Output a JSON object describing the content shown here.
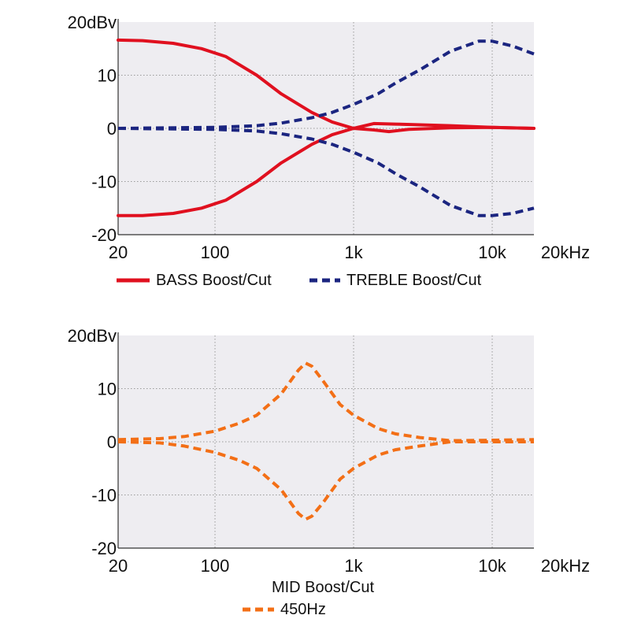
{
  "colors": {
    "plot_background": "#eeedf1",
    "grid": "#9a9a9a",
    "bass": "#e0101f",
    "treble": "#1b2580",
    "mid": "#f36f16"
  },
  "chart_data": [
    {
      "type": "line",
      "title": "",
      "x_scale": "log",
      "xlim": [
        20,
        20000
      ],
      "ylim": [
        -20,
        20
      ],
      "x_ticks": [
        {
          "value": 20,
          "label": "20"
        },
        {
          "value": 100,
          "label": "100"
        },
        {
          "value": 1000,
          "label": "1k"
        },
        {
          "value": 10000,
          "label": "10k"
        },
        {
          "value": 20000,
          "label": "20kHz"
        }
      ],
      "y_ticks": [
        {
          "value": 20,
          "label": "20dBv"
        },
        {
          "value": 10,
          "label": "10"
        },
        {
          "value": 0,
          "label": "0"
        },
        {
          "value": -10,
          "label": "-10"
        },
        {
          "value": -20,
          "label": "-20"
        }
      ],
      "grid": true,
      "legend": [
        {
          "label": "BASS Boost/Cut",
          "style": "solid",
          "color": "#e0101f"
        },
        {
          "label": "TREBLE Boost/Cut",
          "style": "dashed",
          "color": "#1b2580"
        }
      ],
      "series": [
        {
          "group": "BASS",
          "style": "solid",
          "color": "#e0101f",
          "points": [
            [
              20,
              16.6
            ],
            [
              30,
              16.5
            ],
            [
              50,
              16
            ],
            [
              80,
              15
            ],
            [
              120,
              13.5
            ],
            [
              200,
              10
            ],
            [
              300,
              6.5
            ],
            [
              500,
              3
            ],
            [
              700,
              1.2
            ],
            [
              1000,
              0
            ],
            [
              1400,
              0.9
            ],
            [
              2000,
              0.8
            ],
            [
              5000,
              0.5
            ],
            [
              10000,
              0.2
            ],
            [
              20000,
              0
            ]
          ]
        },
        {
          "group": "BASS",
          "style": "solid",
          "color": "#e0101f",
          "points": [
            [
              20,
              -16.4
            ],
            [
              30,
              -16.4
            ],
            [
              50,
              -16
            ],
            [
              80,
              -15
            ],
            [
              120,
              -13.5
            ],
            [
              200,
              -10
            ],
            [
              300,
              -6.5
            ],
            [
              500,
              -3
            ],
            [
              700,
              -1.2
            ],
            [
              1000,
              0
            ],
            [
              1400,
              -0.3
            ],
            [
              1800,
              -0.6
            ],
            [
              2500,
              -0.2
            ],
            [
              5000,
              0.1
            ],
            [
              10000,
              0.2
            ],
            [
              20000,
              0
            ]
          ]
        },
        {
          "group": "TREBLE",
          "style": "dashed",
          "color": "#1b2580",
          "points": [
            [
              20,
              0
            ],
            [
              100,
              0.2
            ],
            [
              200,
              0.5
            ],
            [
              300,
              1
            ],
            [
              500,
              2
            ],
            [
              700,
              3
            ],
            [
              1000,
              4.5
            ],
            [
              1500,
              6.5
            ],
            [
              2000,
              8.5
            ],
            [
              3000,
              11
            ],
            [
              5000,
              14.5
            ],
            [
              8000,
              16.4
            ],
            [
              10000,
              16.4
            ],
            [
              14000,
              15.5
            ],
            [
              20000,
              14
            ]
          ]
        },
        {
          "group": "TREBLE",
          "style": "dashed",
          "color": "#1b2580",
          "points": [
            [
              20,
              0
            ],
            [
              100,
              -0.2
            ],
            [
              200,
              -0.5
            ],
            [
              300,
              -1
            ],
            [
              500,
              -2
            ],
            [
              700,
              -3
            ],
            [
              1000,
              -4.5
            ],
            [
              1500,
              -6.5
            ],
            [
              2000,
              -8.5
            ],
            [
              3000,
              -11
            ],
            [
              5000,
              -14.5
            ],
            [
              8000,
              -16.4
            ],
            [
              10000,
              -16.4
            ],
            [
              14000,
              -16
            ],
            [
              20000,
              -15
            ]
          ]
        }
      ]
    },
    {
      "type": "line",
      "title": "MID Boost/Cut",
      "x_scale": "log",
      "xlim": [
        20,
        20000
      ],
      "ylim": [
        -20,
        20
      ],
      "x_ticks": [
        {
          "value": 20,
          "label": "20"
        },
        {
          "value": 100,
          "label": "100"
        },
        {
          "value": 1000,
          "label": "1k"
        },
        {
          "value": 10000,
          "label": "10k"
        },
        {
          "value": 20000,
          "label": "20kHz"
        }
      ],
      "y_ticks": [
        {
          "value": 20,
          "label": "20dBv"
        },
        {
          "value": 10,
          "label": "10"
        },
        {
          "value": 0,
          "label": "0"
        },
        {
          "value": -10,
          "label": "-10"
        },
        {
          "value": -20,
          "label": "-20"
        }
      ],
      "grid": true,
      "legend": [
        {
          "label": "450Hz",
          "style": "dashed",
          "color": "#f36f16"
        }
      ],
      "series": [
        {
          "group": "MID",
          "style": "dashed",
          "color": "#f36f16",
          "points": [
            [
              20,
              0.4
            ],
            [
              40,
              0.6
            ],
            [
              60,
              1
            ],
            [
              100,
              2
            ],
            [
              150,
              3.5
            ],
            [
              200,
              5
            ],
            [
              300,
              9
            ],
            [
              400,
              13.5
            ],
            [
              450,
              14.8
            ],
            [
              500,
              14.2
            ],
            [
              600,
              11.5
            ],
            [
              800,
              7
            ],
            [
              1000,
              5
            ],
            [
              1500,
              2.5
            ],
            [
              2000,
              1.5
            ],
            [
              3000,
              0.8
            ],
            [
              5000,
              0.2
            ],
            [
              10000,
              0.3
            ],
            [
              20000,
              0.4
            ]
          ]
        },
        {
          "group": "MID",
          "style": "dashed",
          "color": "#f36f16",
          "points": [
            [
              20,
              0
            ],
            [
              40,
              -0.2
            ],
            [
              60,
              -0.8
            ],
            [
              100,
              -2
            ],
            [
              150,
              -3.5
            ],
            [
              200,
              -5
            ],
            [
              300,
              -9
            ],
            [
              400,
              -13.5
            ],
            [
              450,
              -14.6
            ],
            [
              500,
              -14
            ],
            [
              600,
              -11.5
            ],
            [
              800,
              -7
            ],
            [
              1000,
              -5
            ],
            [
              1500,
              -2.5
            ],
            [
              2000,
              -1.5
            ],
            [
              3000,
              -0.8
            ],
            [
              5000,
              0
            ],
            [
              10000,
              0
            ],
            [
              20000,
              0
            ]
          ]
        }
      ]
    }
  ]
}
